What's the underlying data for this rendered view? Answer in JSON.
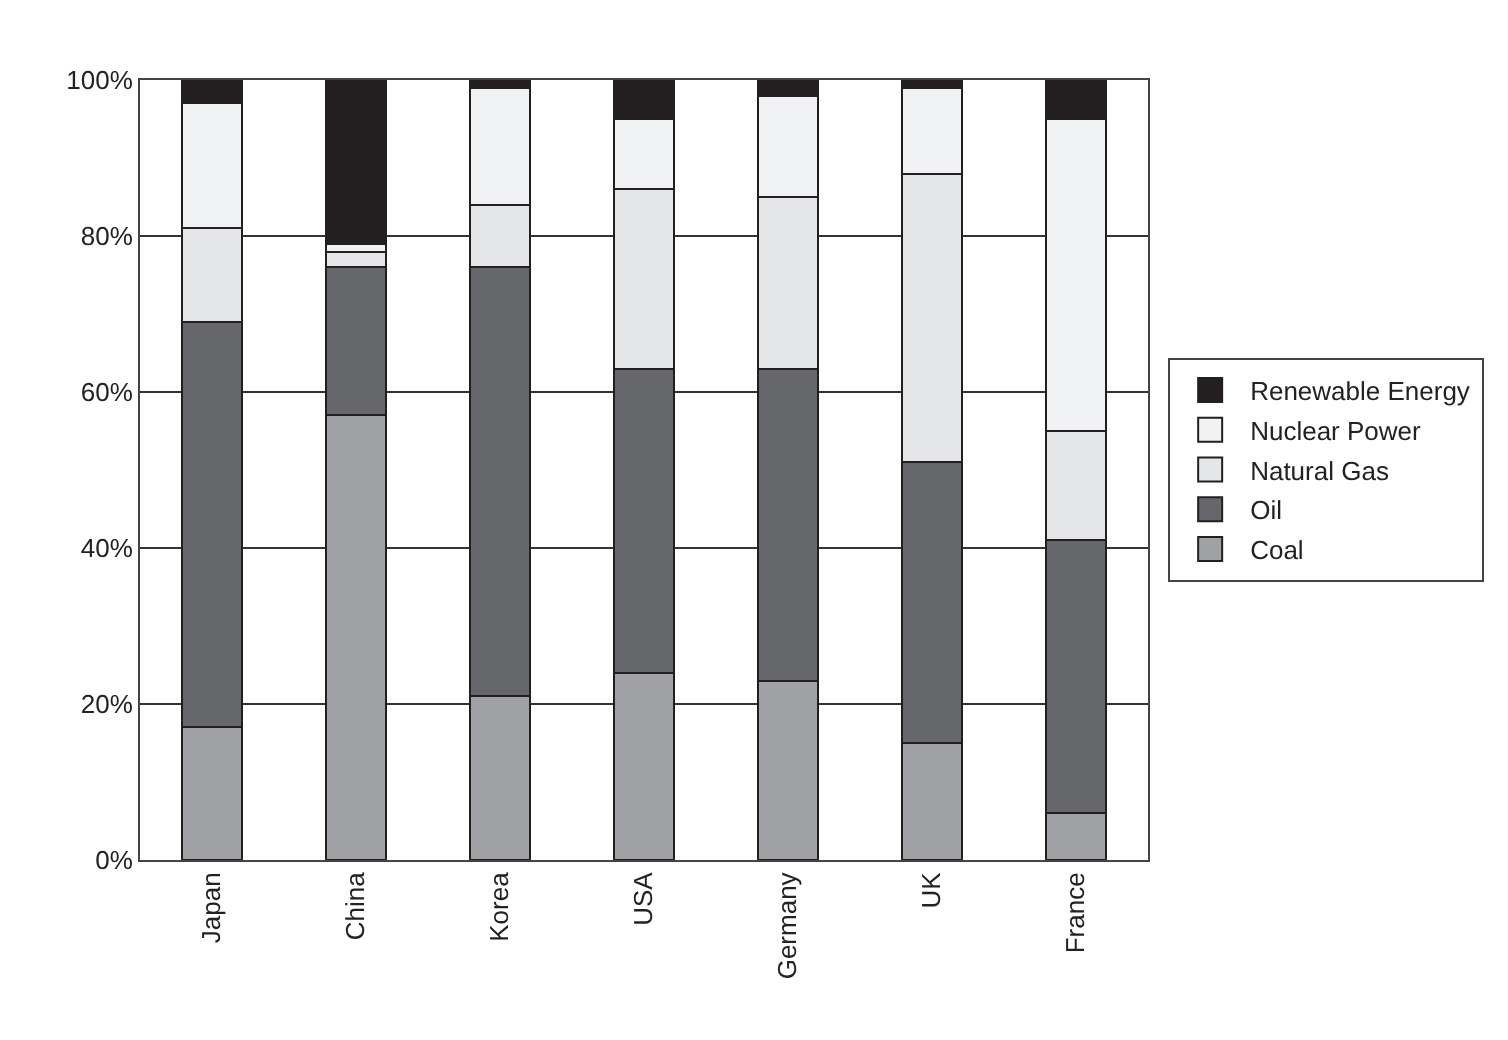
{
  "chart_data": {
    "type": "bar",
    "stacked": true,
    "categories": [
      "Japan",
      "China",
      "Korea",
      "USA",
      "Germany",
      "UK",
      "France"
    ],
    "series": [
      {
        "name": "Coal",
        "color": "#a0a1a4",
        "values": [
          17,
          57,
          21,
          24,
          23,
          15,
          6
        ]
      },
      {
        "name": "Oil",
        "color": "#66676a",
        "values": [
          52,
          19,
          55,
          39,
          40,
          36,
          35
        ]
      },
      {
        "name": "Natural Gas",
        "color": "#e5e6e8",
        "values": [
          12,
          2,
          8,
          23,
          22,
          37,
          14
        ]
      },
      {
        "name": "Nuclear Power",
        "color": "#f1f2f3",
        "values": [
          16,
          1,
          15,
          9,
          13,
          11,
          40
        ]
      },
      {
        "name": "Renewable Energy",
        "color": "#231f20",
        "values": [
          3,
          21,
          1,
          5,
          2,
          1,
          5
        ]
      }
    ],
    "ylim": [
      0,
      100
    ],
    "yticks": [
      {
        "value": 0,
        "label": "0%"
      },
      {
        "value": 20,
        "label": "20%"
      },
      {
        "value": 40,
        "label": "40%"
      },
      {
        "value": 60,
        "label": "60%"
      },
      {
        "value": 80,
        "label": "80%"
      },
      {
        "value": 100,
        "label": "100%"
      }
    ],
    "grid": "y",
    "legend": "right"
  }
}
